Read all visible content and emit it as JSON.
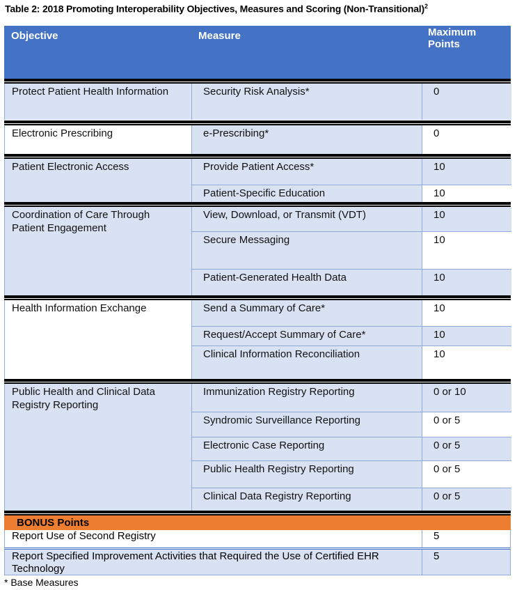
{
  "title": "Table 2: 2018 Promoting Interoperability Objectives, Measures and Scoring (Non-Transitional)",
  "title_sup": "2",
  "headers": {
    "objective": "Objective",
    "measure": "Measure",
    "points": "Maximum Points"
  },
  "groups": [
    {
      "objective": "Protect Patient Health Information",
      "rows": [
        {
          "measure": "Security Risk Analysis*",
          "points": "0"
        }
      ]
    },
    {
      "objective": "Electronic Prescribing",
      "rows": [
        {
          "measure": "e-Prescribing*",
          "points": "0"
        }
      ]
    },
    {
      "objective": "Patient Electronic Access",
      "rows": [
        {
          "measure": "Provide Patient Access*",
          "points": "10"
        },
        {
          "measure": "Patient-Specific Education",
          "points": "10"
        }
      ]
    },
    {
      "objective": "Coordination of Care Through Patient Engagement",
      "rows": [
        {
          "measure": "View, Download, or Transmit (VDT)",
          "points": "10"
        },
        {
          "measure": "Secure Messaging",
          "points": "10"
        },
        {
          "measure": "Patient-Generated Health Data",
          "points": "10"
        }
      ]
    },
    {
      "objective": "Health Information Exchange",
      "rows": [
        {
          "measure": "Send a Summary of Care*",
          "points": "10"
        },
        {
          "measure": "Request/Accept Summary of Care*",
          "points": "10"
        },
        {
          "measure": "Clinical Information Reconciliation",
          "points": "10"
        }
      ]
    },
    {
      "objective": "Public Health and Clinical Data Registry Reporting",
      "rows": [
        {
          "measure": "Immunization Registry Reporting",
          "points": "0 or 10"
        },
        {
          "measure": "Syndromic Surveillance Reporting",
          "points": "0 or 5"
        },
        {
          "measure": "Electronic Case Reporting",
          "points": "0 or 5"
        },
        {
          "measure": "Public Health Registry Reporting",
          "points": "0 or 5"
        },
        {
          "measure": "Clinical Data Registry Reporting",
          "points": "0 or 5"
        }
      ]
    }
  ],
  "bonus": {
    "label": "BONUS Points",
    "rows": [
      {
        "measure": "Report Use of Second Registry",
        "points": "5"
      },
      {
        "measure": "Report Specified Improvement Activities that Required the Use of Certified EHR Technology",
        "points": "5"
      }
    ]
  },
  "footnote": "* Base Measures"
}
